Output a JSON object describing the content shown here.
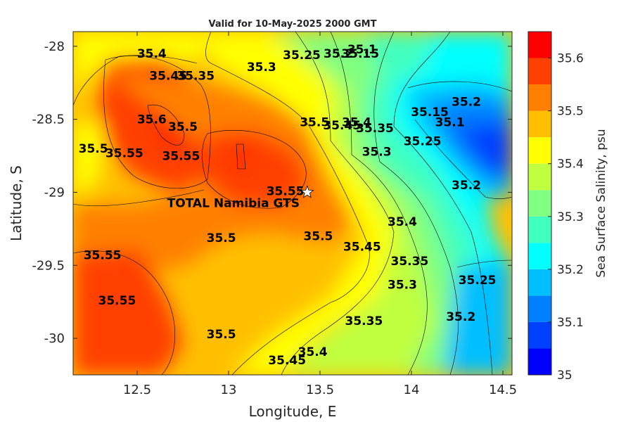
{
  "chart_data": {
    "type": "heatmap",
    "title": "Valid for 10-May-2025 2000 GMT",
    "xlabel": "Longitude, E",
    "ylabel": "Latitude, S",
    "xlim": [
      12.15,
      14.55
    ],
    "ylim": [
      -30.25,
      -27.9
    ],
    "xticks": [
      "12.5",
      "13",
      "13.5",
      "14",
      "14.5"
    ],
    "yticks": [
      "-28",
      "-28.5",
      "-29",
      "-29.5",
      "-30"
    ],
    "colorbar": {
      "label": "Sea Surface Salinity, psu",
      "range": [
        35.0,
        35.65
      ],
      "ticks": [
        "35",
        "35.1",
        "35.2",
        "35.3",
        "35.4",
        "35.5",
        "35.6"
      ],
      "levels": [
        {
          "value": 35.0,
          "color": "#0000ff"
        },
        {
          "value": 35.05,
          "color": "#0040ff"
        },
        {
          "value": 35.1,
          "color": "#0080ff"
        },
        {
          "value": 35.15,
          "color": "#00bfff"
        },
        {
          "value": 35.2,
          "color": "#00ffff"
        },
        {
          "value": 35.25,
          "color": "#40ffbf"
        },
        {
          "value": 35.3,
          "color": "#80ff80"
        },
        {
          "value": 35.35,
          "color": "#bfff40"
        },
        {
          "value": 35.4,
          "color": "#ffff00"
        },
        {
          "value": 35.45,
          "color": "#ffbf00"
        },
        {
          "value": 35.5,
          "color": "#ff8000"
        },
        {
          "value": 35.55,
          "color": "#ff4000"
        },
        {
          "value": 35.6,
          "color": "#ff0000"
        }
      ]
    },
    "contour_labels": [
      {
        "text": "35.4",
        "lon": 12.58,
        "lat": -28.05
      },
      {
        "text": "35.45",
        "lon": 12.67,
        "lat": -28.2
      },
      {
        "text": "35.35",
        "lon": 12.82,
        "lat": -28.2
      },
      {
        "text": "35.3",
        "lon": 13.18,
        "lat": -28.14
      },
      {
        "text": "35.25",
        "lon": 13.4,
        "lat": -28.06
      },
      {
        "text": "35.2",
        "lon": 13.6,
        "lat": -28.05
      },
      {
        "text": "35.15",
        "lon": 13.72,
        "lat": -28.05
      },
      {
        "text": "35.1",
        "lon": 13.73,
        "lat": -28.02
      },
      {
        "text": "35.6",
        "lon": 12.58,
        "lat": -28.5
      },
      {
        "text": "35.5",
        "lon": 12.26,
        "lat": -28.7
      },
      {
        "text": "35.55",
        "lon": 12.43,
        "lat": -28.73
      },
      {
        "text": "35.5",
        "lon": 12.75,
        "lat": -28.55
      },
      {
        "text": "35.55",
        "lon": 12.74,
        "lat": -28.75
      },
      {
        "text": "35.5",
        "lon": 13.47,
        "lat": -28.52
      },
      {
        "text": "35.45",
        "lon": 13.62,
        "lat": -28.54
      },
      {
        "text": "35.4",
        "lon": 13.7,
        "lat": -28.52
      },
      {
        "text": "35.35",
        "lon": 13.8,
        "lat": -28.56
      },
      {
        "text": "35.3",
        "lon": 13.81,
        "lat": -28.72
      },
      {
        "text": "35.2",
        "lon": 14.3,
        "lat": -28.38
      },
      {
        "text": "35.15",
        "lon": 14.1,
        "lat": -28.45
      },
      {
        "text": "35.1",
        "lon": 14.21,
        "lat": -28.52
      },
      {
        "text": "35.25",
        "lon": 14.06,
        "lat": -28.65
      },
      {
        "text": "35.2",
        "lon": 14.3,
        "lat": -28.95
      },
      {
        "text": "35.55",
        "lon": 13.31,
        "lat": -28.99
      },
      {
        "text": "35.5",
        "lon": 12.96,
        "lat": -29.31
      },
      {
        "text": "35.5",
        "lon": 13.49,
        "lat": -29.3
      },
      {
        "text": "35.45",
        "lon": 13.73,
        "lat": -29.37
      },
      {
        "text": "35.4",
        "lon": 13.95,
        "lat": -29.2
      },
      {
        "text": "35.55",
        "lon": 12.31,
        "lat": -29.43
      },
      {
        "text": "35.35",
        "lon": 13.99,
        "lat": -29.47
      },
      {
        "text": "35.3",
        "lon": 13.95,
        "lat": -29.63
      },
      {
        "text": "35.25",
        "lon": 14.36,
        "lat": -29.6
      },
      {
        "text": "35.55",
        "lon": 12.39,
        "lat": -29.74
      },
      {
        "text": "35.35",
        "lon": 13.74,
        "lat": -29.88
      },
      {
        "text": "35.2",
        "lon": 14.27,
        "lat": -29.85
      },
      {
        "text": "35.5",
        "lon": 12.96,
        "lat": -29.97
      },
      {
        "text": "35.4",
        "lon": 13.46,
        "lat": -30.09
      },
      {
        "text": "35.45",
        "lon": 13.32,
        "lat": -30.15
      }
    ],
    "annotations": [
      {
        "text": "TOTAL Namibia GTS",
        "lon": 13.43,
        "lat": -29.0,
        "marker": "star"
      }
    ]
  }
}
